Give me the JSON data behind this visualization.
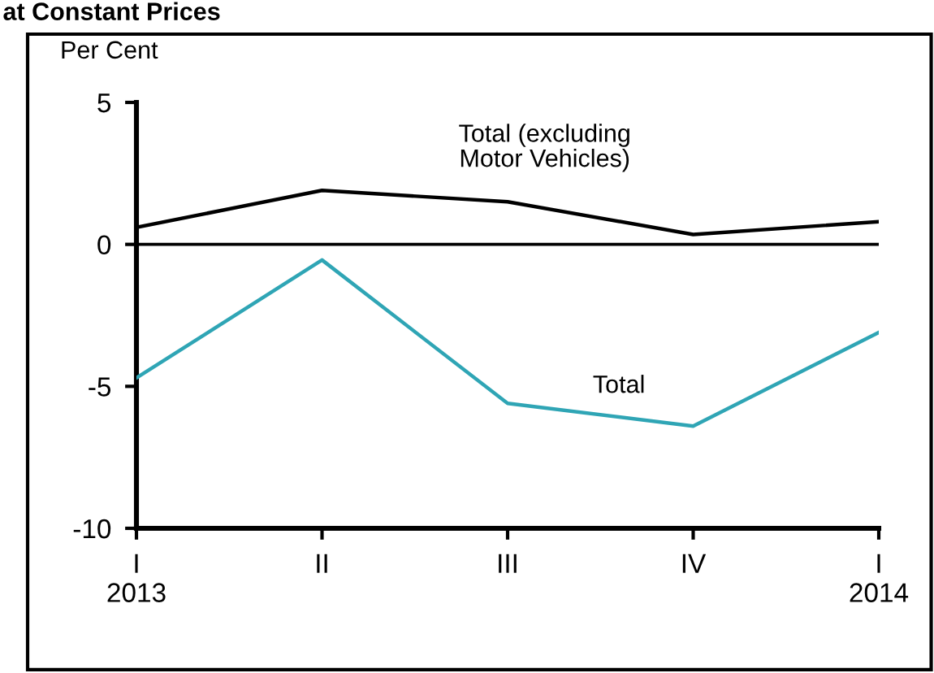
{
  "chart_data": {
    "type": "line",
    "title": "at Constant Prices",
    "ylabel": "Per Cent",
    "categories": [
      "I\n2013",
      "II",
      "III",
      "IV",
      "I\n2014"
    ],
    "series": [
      {
        "name": "Total (excluding\nMotor Vehicles)",
        "color": "#000000",
        "values": [
          0.6,
          1.9,
          1.5,
          0.35,
          0.8
        ]
      },
      {
        "name": "Total",
        "color": "#2fa5b5",
        "values": [
          -4.7,
          -0.55,
          -5.6,
          -6.4,
          -3.1
        ]
      }
    ],
    "ylim": [
      -10,
      5
    ],
    "yticks": [
      -10,
      -5,
      0,
      5
    ],
    "grid": false,
    "legend": false,
    "marker": "none",
    "line_style": "solid",
    "ref_lines": [
      {
        "axis": "y",
        "value": 0,
        "color": "#000000"
      }
    ]
  }
}
